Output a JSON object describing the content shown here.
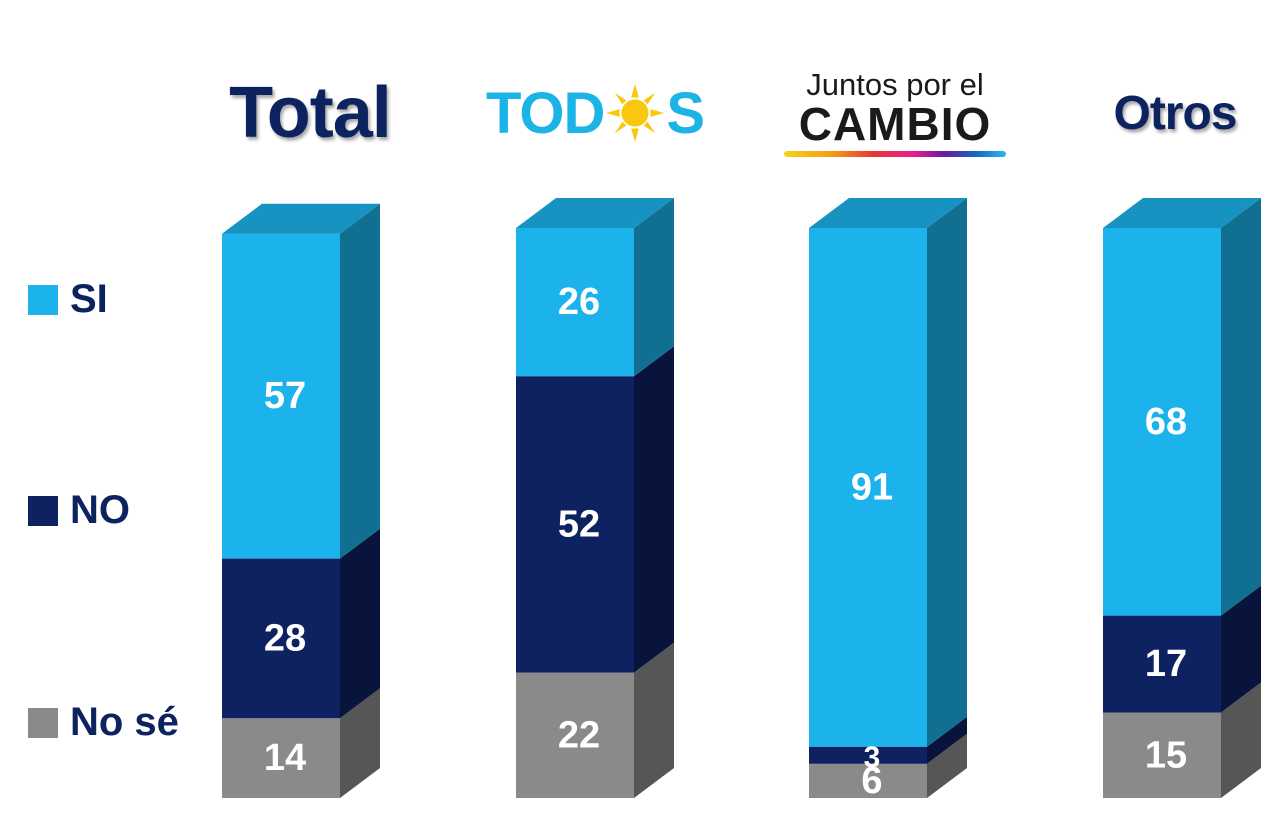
{
  "chart_data": {
    "type": "bar",
    "stacked": true,
    "style": "3d",
    "categories": [
      "Total",
      "TODOS",
      "Juntos por el CAMBIO",
      "Otros"
    ],
    "series": [
      {
        "name": "SI",
        "color": "#1cb3ec",
        "values": [
          57,
          26,
          91,
          68
        ]
      },
      {
        "name": "NO",
        "color": "#0e2160",
        "values": [
          28,
          52,
          3,
          17
        ]
      },
      {
        "name": "No sé",
        "color": "#8a8a8a",
        "values": [
          14,
          22,
          6,
          15
        ]
      }
    ],
    "legend_position": "left",
    "grid": false,
    "ylim": [
      0,
      100
    ]
  },
  "headers": {
    "total": "Total",
    "todos_left": "TOD",
    "todos_right": "S",
    "juntos_line1": "Juntos por el",
    "juntos_line2": "CAMBIO",
    "otros": "Otros"
  },
  "icons": {
    "todos_sun": "sun-icon",
    "juntos_bar": "color-stripe"
  },
  "colors": {
    "header_text": "#0d2360",
    "todos_blue": "#1cb3e6",
    "sun_yellow": "#f9c80e"
  }
}
